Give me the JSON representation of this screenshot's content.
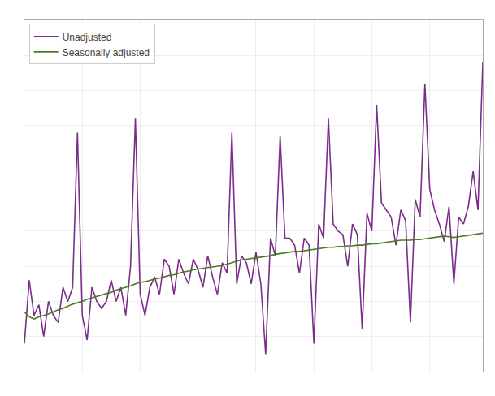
{
  "chart_data": {
    "type": "line",
    "series": [
      {
        "name": "Unadjusted",
        "color": "#7b2d8b",
        "values": [
          89.0,
          98.0,
          93.0,
          94.5,
          90.0,
          95.0,
          93.0,
          92.0,
          97.0,
          95.0,
          97.0,
          119.0,
          93.0,
          89.5,
          97.0,
          95.0,
          94.0,
          95.0,
          98.0,
          95.0,
          97.0,
          93.0,
          100.0,
          121.0,
          96.0,
          93.0,
          97.0,
          98.5,
          96.0,
          101.0,
          100.0,
          96.0,
          101.0,
          99.0,
          97.5,
          101.0,
          99.5,
          97.0,
          101.5,
          98.5,
          96.0,
          100.5,
          99.0,
          119.0,
          97.5,
          101.5,
          100.5,
          97.5,
          102.0,
          97.5,
          87.5,
          104.0,
          101.5,
          118.5,
          104.0,
          104.0,
          103.0,
          99.0,
          104.0,
          103.0,
          89.0,
          106.0,
          104.0,
          121.0,
          106.0,
          105.0,
          104.5,
          100.0,
          106.0,
          104.5,
          91.0,
          107.5,
          105.0,
          123.0,
          109.0,
          108.0,
          107.0,
          103.0,
          108.0,
          106.5,
          92.0,
          109.5,
          107.0,
          126.0,
          111.0,
          108.0,
          106.0,
          103.5,
          108.5,
          97.5,
          107.0,
          106.0,
          108.5,
          113.5,
          108.0,
          129.0
        ]
      },
      {
        "name": "Seasonally adjusted",
        "color": "#4a7c1f",
        "values": [
          93.5,
          92.8,
          92.5,
          92.8,
          93.0,
          93.2,
          93.5,
          93.8,
          94.0,
          94.3,
          94.6,
          94.8,
          95.0,
          95.3,
          95.5,
          95.7,
          95.9,
          96.1,
          96.3,
          96.6,
          96.8,
          97.0,
          97.2,
          97.5,
          97.7,
          97.8,
          98.0,
          98.2,
          98.3,
          98.5,
          98.7,
          98.8,
          99.0,
          99.2,
          99.3,
          99.5,
          99.6,
          99.7,
          99.8,
          99.9,
          100.0,
          100.1,
          100.3,
          100.5,
          100.7,
          100.9,
          101.0,
          101.1,
          101.2,
          101.3,
          101.4,
          101.5,
          101.7,
          101.8,
          101.9,
          102.0,
          102.1,
          102.1,
          102.2,
          102.3,
          102.4,
          102.5,
          102.6,
          102.7,
          102.7,
          102.8,
          102.8,
          102.9,
          102.9,
          103.0,
          103.0,
          103.1,
          103.2,
          103.2,
          103.3,
          103.4,
          103.5,
          103.6,
          103.7,
          103.7,
          103.7,
          103.8,
          103.8,
          103.9,
          104.0,
          104.1,
          104.2,
          104.3,
          104.2,
          104.1,
          104.2,
          104.3,
          104.4,
          104.5,
          104.6,
          104.7
        ]
      }
    ],
    "xlim": [
      0,
      95
    ],
    "xticks": [
      0,
      12,
      24,
      36,
      48,
      60,
      72,
      84,
      95
    ],
    "ylim": [
      85,
      135
    ],
    "yticks": [
      90,
      95,
      100,
      105,
      110,
      115,
      120,
      125,
      130
    ],
    "grid": true,
    "legend": "upper left",
    "tick_labels": false
  }
}
